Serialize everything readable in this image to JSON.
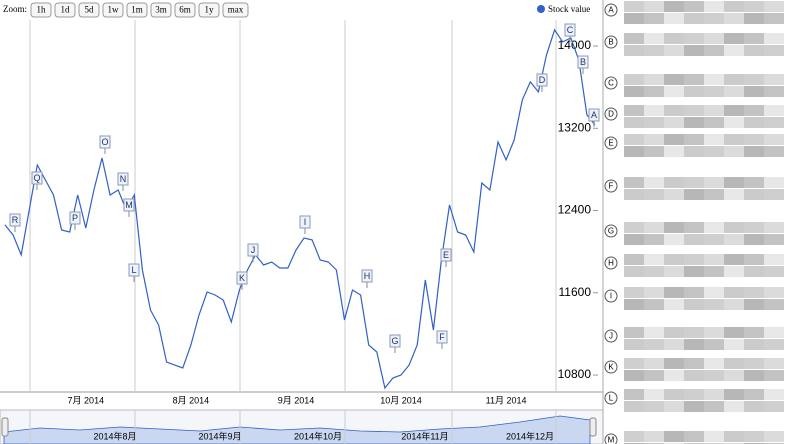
{
  "chart_data": {
    "type": "line",
    "zoom_label": "Zoom:",
    "zoom_buttons": [
      "1h",
      "1d",
      "5d",
      "1w",
      "1m",
      "3m",
      "6m",
      "1y",
      "max"
    ],
    "categories": [
      null,
      null,
      null,
      null,
      null,
      null,
      null,
      null,
      null,
      null,
      "7月 2014",
      null,
      null,
      null,
      null,
      null,
      null,
      null,
      null,
      null,
      null,
      null,
      null,
      "8月 2014",
      null,
      null,
      null,
      null,
      null,
      null,
      null,
      null,
      null,
      null,
      null,
      null,
      "9月 2014",
      null,
      null,
      null,
      null,
      null,
      null,
      null,
      null,
      null,
      null,
      null,
      null,
      "10月 2014",
      null,
      null,
      null,
      null,
      null,
      null,
      null,
      null,
      null,
      null,
      null,
      null,
      "11月 2014",
      null,
      null,
      null,
      null,
      null,
      null,
      null,
      null,
      null,
      null,
      null
    ],
    "series": [
      {
        "name": "Stock value",
        "color": "#3060c8",
        "values": [
          12260,
          12162,
          11968,
          12405,
          12843,
          12697,
          12551,
          12211,
          12191,
          12551,
          12230,
          12600,
          12911,
          12551,
          12600,
          12405,
          12551,
          11822,
          11432,
          11287,
          10926,
          10897,
          10868,
          11092,
          11384,
          11608,
          11578,
          11530,
          11316,
          11627,
          11822,
          11968,
          11870,
          11899,
          11841,
          11841,
          12016,
          12133,
          12114,
          11919,
          11899,
          11822,
          11335,
          11627,
          11578,
          11092,
          11024,
          10674,
          10771,
          10800,
          10897,
          11092,
          11724,
          11238,
          11919,
          12454,
          12191,
          12162,
          11997,
          12668,
          12600,
          13067,
          12892,
          13087,
          13476,
          13651,
          13554,
          13914,
          14157,
          14040,
          14079,
          13865,
          13330,
          13233
        ]
      }
    ],
    "ylim": [
      10635,
      14253
    ],
    "yticks": [
      10800,
      11600,
      12400,
      13200,
      14000
    ],
    "flags": [
      "R",
      "Q",
      "P",
      "O",
      "N",
      "M",
      "L",
      "K",
      "J",
      "I",
      "H",
      "G",
      "F",
      "E",
      "D",
      "C",
      "B",
      "A"
    ],
    "navigator_labels": [
      "2014年8月",
      "2014年9月",
      "2014年10月",
      "2014年11月",
      "2014年12月"
    ]
  },
  "news": {
    "letters": [
      "A",
      "B",
      "C",
      "D",
      "E",
      "F",
      "G",
      "H",
      "I",
      "J",
      "K",
      "L",
      "M"
    ]
  }
}
